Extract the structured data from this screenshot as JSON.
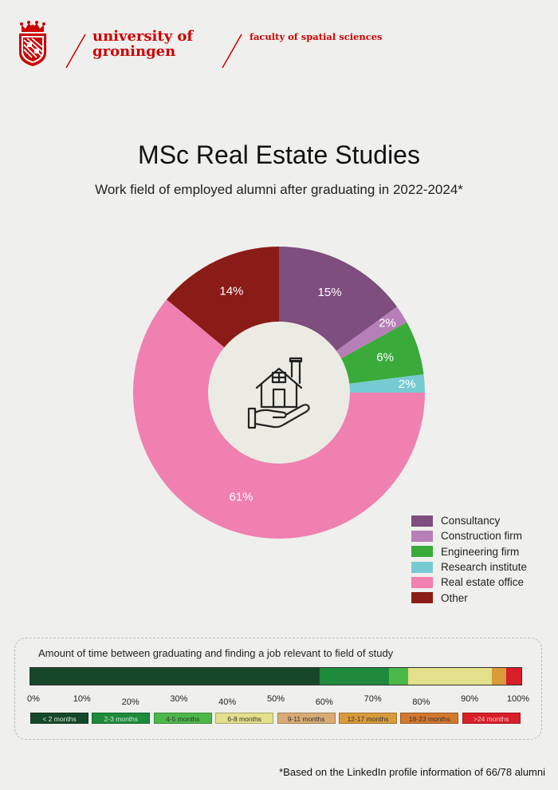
{
  "header": {
    "university_line1": "university of",
    "university_line2": "groningen",
    "faculty": "faculty of spatial sciences"
  },
  "title": "MSc Real Estate Studies",
  "subtitle": "Work field of employed alumni after graduating in 2022-2024*",
  "center_icon": "house-in-hand-icon",
  "chart_data": [
    {
      "type": "pie",
      "donut": true,
      "slices": [
        {
          "name": "Consultancy",
          "value": 15,
          "label": "15%",
          "color": "#7d4e7e"
        },
        {
          "name": "Construction firm",
          "value": 2,
          "label": "2%",
          "color": "#b77fb7"
        },
        {
          "name": "Engineering firm",
          "value": 6,
          "label": "6%",
          "color": "#3aab3a"
        },
        {
          "name": "Research institute",
          "value": 2,
          "label": "2%",
          "color": "#76cbd2"
        },
        {
          "name": "Real estate office",
          "value": 61,
          "label": "61%",
          "color": "#ef80b0"
        },
        {
          "name": "Other",
          "value": 14,
          "label": "14%",
          "color": "#8b1b17"
        }
      ],
      "legend": "bottom-right"
    },
    {
      "type": "bar",
      "orientation": "horizontal-stacked",
      "title": "Amount of time between graduating and finding a job relevant to field of study",
      "xlim": [
        0,
        100
      ],
      "x_ticks": [
        "0%",
        "10%",
        "20%",
        "30%",
        "40%",
        "50%",
        "60%",
        "70%",
        "80%",
        "90%",
        "100%"
      ],
      "segments": [
        {
          "name": "< 2 months",
          "value": 59,
          "color": "#17472a"
        },
        {
          "name": "2-3 months",
          "value": 14,
          "color": "#1e8a3c"
        },
        {
          "name": "4-5 months",
          "value": 4,
          "color": "#4db84a"
        },
        {
          "name": "6-8 months",
          "value": 17,
          "color": "#e3df8b"
        },
        {
          "name": "9-11 months",
          "value": 0,
          "color": "#d9ac74"
        },
        {
          "name": "12-17 months",
          "value": 3,
          "color": "#d99a3a"
        },
        {
          "name": "18-23 months",
          "value": 0,
          "color": "#d2782e"
        },
        {
          "name": ">24 months",
          "value": 3,
          "color": "#d81e28"
        }
      ]
    }
  ],
  "footnote": "*Based on the LinkedIn profile information of 66/78 alumni",
  "colors": {
    "brand_red": "#cc0000",
    "center_fill": "#ebebe3"
  }
}
